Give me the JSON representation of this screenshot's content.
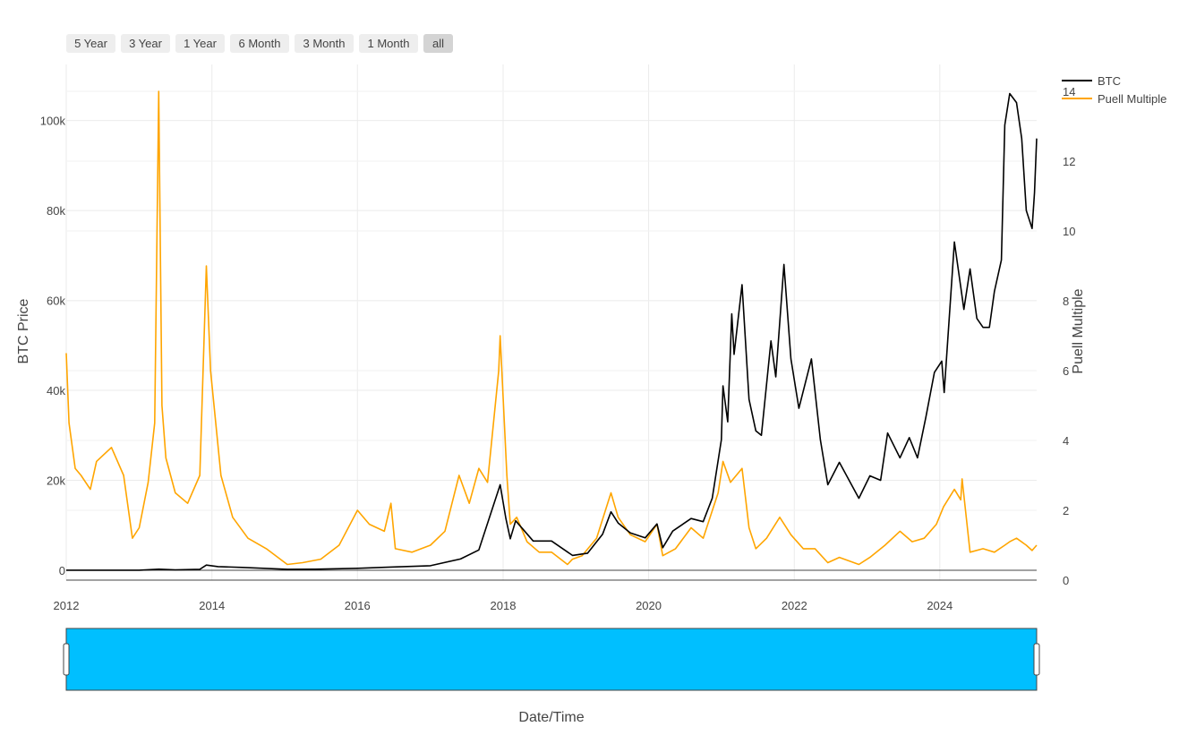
{
  "range_selector": {
    "buttons": [
      "5 Year",
      "3 Year",
      "1 Year",
      "6 Month",
      "3 Month",
      "1 Month",
      "all"
    ],
    "active": "all"
  },
  "chart_data": {
    "type": "line",
    "title": "",
    "xlabel": "Date/Time",
    "ylabel": "BTC Price",
    "y2label": "Puell Multiple",
    "xlim": [
      "2012-01-01",
      "2025-05-01"
    ],
    "ylim": [
      -2200,
      106500
    ],
    "y2lim": [
      0,
      14
    ],
    "x_ticks": [
      "2012",
      "2014",
      "2016",
      "2018",
      "2020",
      "2022",
      "2024"
    ],
    "y_ticks": [
      {
        "value": 0,
        "label": "0"
      },
      {
        "value": 20000,
        "label": "20k"
      },
      {
        "value": 40000,
        "label": "40k"
      },
      {
        "value": 60000,
        "label": "60k"
      },
      {
        "value": 80000,
        "label": "80k"
      },
      {
        "value": 100000,
        "label": "100k"
      }
    ],
    "y2_ticks": [
      {
        "value": 0,
        "label": "0"
      },
      {
        "value": 2,
        "label": "2"
      },
      {
        "value": 4,
        "label": "4"
      },
      {
        "value": 6,
        "label": "6"
      },
      {
        "value": 8,
        "label": "8"
      },
      {
        "value": 10,
        "label": "10"
      },
      {
        "value": 12,
        "label": "12"
      },
      {
        "value": 14,
        "label": "14"
      }
    ],
    "grid": true,
    "legend_position": "top-right",
    "range_slider": true,
    "range_slider_color": "#00bfff",
    "series": [
      {
        "name": "BTC",
        "axis": "y",
        "color": "#000000",
        "x": [
          "2012-01-01",
          "2012-07-01",
          "2013-01-01",
          "2013-04-10",
          "2013-07-01",
          "2013-11-01",
          "2013-12-04",
          "2014-02-01",
          "2014-06-01",
          "2015-01-15",
          "2015-06-01",
          "2016-01-01",
          "2016-06-15",
          "2017-01-01",
          "2017-06-01",
          "2017-09-01",
          "2017-12-17",
          "2018-01-15",
          "2018-02-06",
          "2018-03-05",
          "2018-06-01",
          "2018-09-01",
          "2018-12-15",
          "2019-03-01",
          "2019-05-15",
          "2019-06-26",
          "2019-08-01",
          "2019-10-01",
          "2019-12-15",
          "2020-02-12",
          "2020-03-12",
          "2020-05-01",
          "2020-08-01",
          "2020-10-01",
          "2020-11-15",
          "2020-12-31",
          "2021-01-08",
          "2021-02-01",
          "2021-02-21",
          "2021-03-05",
          "2021-04-14",
          "2021-05-19",
          "2021-06-22",
          "2021-07-20",
          "2021-09-06",
          "2021-09-30",
          "2021-11-10",
          "2021-12-15",
          "2022-01-24",
          "2022-03-28",
          "2022-05-12",
          "2022-06-18",
          "2022-08-15",
          "2022-11-21",
          "2023-01-15",
          "2023-03-10",
          "2023-04-14",
          "2023-06-15",
          "2023-08-01",
          "2023-09-11",
          "2023-10-23",
          "2023-12-05",
          "2024-01-11",
          "2024-01-23",
          "2024-03-14",
          "2024-04-15",
          "2024-05-01",
          "2024-06-01",
          "2024-07-05",
          "2024-08-05",
          "2024-09-06",
          "2024-10-01",
          "2024-11-05",
          "2024-11-22",
          "2024-12-17",
          "2025-01-20",
          "2025-02-15",
          "2025-03-10",
          "2025-04-08",
          "2025-04-20",
          "2025-05-01"
        ],
        "y": [
          5,
          7,
          13,
          230,
          90,
          200,
          1150,
          800,
          630,
          200,
          230,
          430,
          700,
          1000,
          2500,
          4500,
          19000,
          11500,
          7000,
          11000,
          6500,
          6500,
          3300,
          3800,
          8000,
          13000,
          10500,
          8300,
          7200,
          10300,
          5000,
          8700,
          11500,
          10800,
          16000,
          29000,
          41000,
          33000,
          57000,
          48000,
          63500,
          38000,
          31000,
          30000,
          51000,
          43000,
          68000,
          47000,
          36000,
          47000,
          29000,
          19000,
          24000,
          16000,
          21000,
          20000,
          30500,
          25000,
          29500,
          25000,
          34000,
          44000,
          46500,
          39500,
          73000,
          63000,
          58000,
          67000,
          56000,
          54000,
          54000,
          62000,
          69000,
          99000,
          106000,
          104000,
          96000,
          80000,
          76000,
          84000,
          96000
        ]
      },
      {
        "name": "Puell Multiple",
        "axis": "y2",
        "color": "#ffa500",
        "x": [
          "2012-01-01",
          "2012-01-15",
          "2012-02-15",
          "2012-03-15",
          "2012-05-01",
          "2012-06-01",
          "2012-08-15",
          "2012-10-15",
          "2012-11-28",
          "2013-01-01",
          "2013-02-15",
          "2013-03-20",
          "2013-04-09",
          "2013-04-25",
          "2013-05-15",
          "2013-07-01",
          "2013-09-01",
          "2013-11-01",
          "2013-12-04",
          "2013-12-25",
          "2014-02-15",
          "2014-04-15",
          "2014-07-01",
          "2014-10-01",
          "2015-01-14",
          "2015-04-01",
          "2015-07-01",
          "2015-10-01",
          "2016-01-01",
          "2016-03-01",
          "2016-05-15",
          "2016-06-17",
          "2016-07-09",
          "2016-10-01",
          "2017-01-01",
          "2017-03-15",
          "2017-05-25",
          "2017-07-15",
          "2017-09-01",
          "2017-10-15",
          "2017-12-10",
          "2017-12-17",
          "2018-01-20",
          "2018-02-06",
          "2018-03-10",
          "2018-05-01",
          "2018-07-01",
          "2018-09-01",
          "2018-11-20",
          "2018-12-15",
          "2019-02-01",
          "2019-04-15",
          "2019-06-26",
          "2019-08-01",
          "2019-10-01",
          "2019-12-15",
          "2020-02-12",
          "2020-03-12",
          "2020-05-15",
          "2020-08-01",
          "2020-10-01",
          "2020-12-15",
          "2021-01-08",
          "2021-02-15",
          "2021-04-14",
          "2021-05-19",
          "2021-06-22",
          "2021-08-15",
          "2021-10-20",
          "2021-12-15",
          "2022-02-15",
          "2022-04-15",
          "2022-06-18",
          "2022-08-15",
          "2022-11-21",
          "2023-01-15",
          "2023-04-01",
          "2023-06-15",
          "2023-08-15",
          "2023-10-15",
          "2023-12-15",
          "2024-01-20",
          "2024-03-14",
          "2024-04-15",
          "2024-04-22",
          "2024-06-01",
          "2024-08-05",
          "2024-10-01",
          "2024-11-22",
          "2024-12-17",
          "2025-01-20",
          "2025-03-10",
          "2025-04-08",
          "2025-05-01"
        ],
        "y": [
          6.5,
          4.5,
          3.2,
          3.0,
          2.6,
          3.4,
          3.8,
          3.0,
          1.2,
          1.5,
          2.8,
          4.5,
          14.0,
          5.0,
          3.5,
          2.5,
          2.2,
          3.0,
          9.0,
          6.0,
          3.0,
          1.8,
          1.2,
          0.9,
          0.45,
          0.5,
          0.6,
          1.0,
          2.0,
          1.6,
          1.4,
          2.2,
          0.9,
          0.8,
          1.0,
          1.4,
          3.0,
          2.2,
          3.2,
          2.8,
          6.0,
          7.0,
          3.0,
          1.6,
          1.8,
          1.1,
          0.8,
          0.8,
          0.45,
          0.6,
          0.7,
          1.2,
          2.5,
          1.8,
          1.3,
          1.1,
          1.6,
          0.7,
          0.9,
          1.5,
          1.2,
          2.5,
          3.4,
          2.8,
          3.2,
          1.5,
          0.9,
          1.2,
          1.8,
          1.3,
          0.9,
          0.9,
          0.5,
          0.65,
          0.45,
          0.65,
          1.0,
          1.4,
          1.1,
          1.2,
          1.6,
          2.1,
          2.6,
          2.3,
          2.9,
          0.8,
          0.9,
          0.8,
          1.0,
          1.1,
          1.2,
          1.0,
          0.85,
          1.0
        ]
      }
    ]
  }
}
